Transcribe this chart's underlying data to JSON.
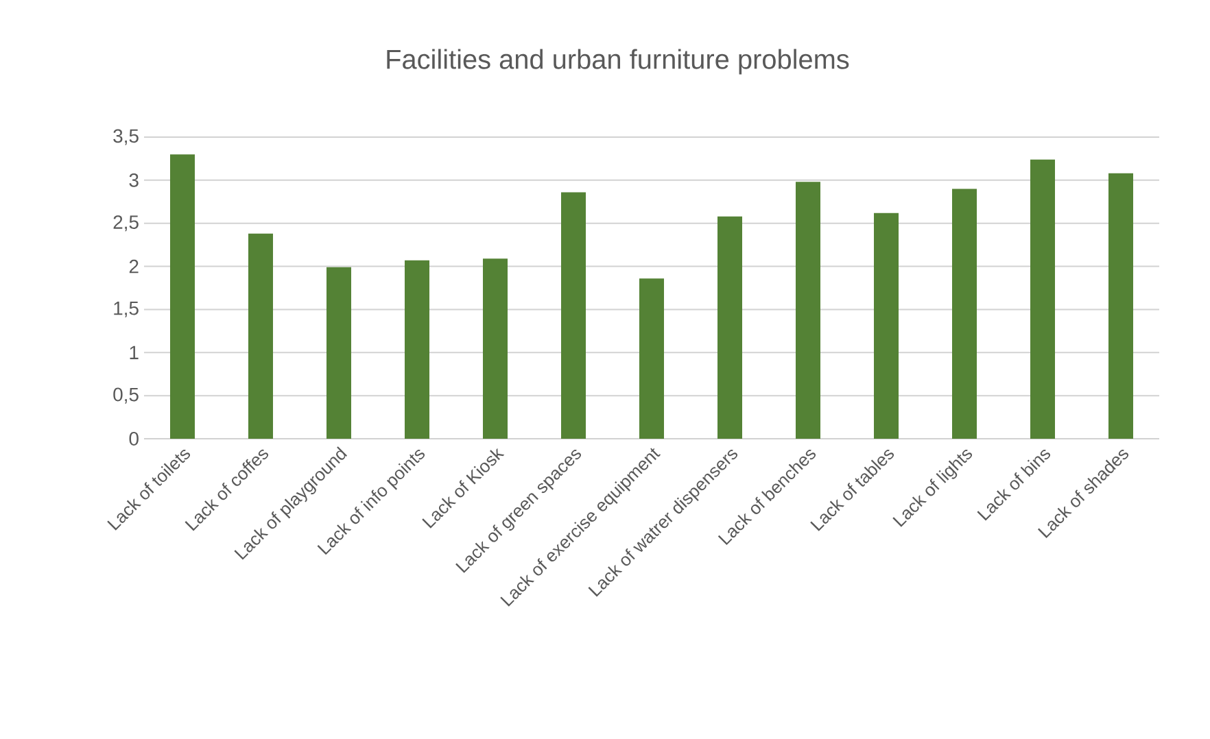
{
  "chart_data": {
    "type": "bar",
    "title": "Facilities and urban furniture problems",
    "categories": [
      "Lack of toilets",
      "Lack of coffes",
      "Lack of playground",
      "Lack of info points",
      "Lack of Kiosk",
      "Lack of green spaces",
      "Lack of exercise equipment",
      "Lack of watrer dispensers",
      "Lack of benches",
      "Lack of tables",
      "Lack of lights",
      "Lack of bins",
      "Lack of shades"
    ],
    "values": [
      3.3,
      2.38,
      1.99,
      2.07,
      2.09,
      2.86,
      1.86,
      2.58,
      2.98,
      2.62,
      2.9,
      3.24,
      3.08
    ],
    "color": "#548235",
    "ylim": [
      0,
      3.5
    ],
    "yticks": [
      0,
      {
        "value": 0.5,
        "label": "0,5"
      },
      1,
      {
        "value": 1.5,
        "label": "1,5"
      },
      2,
      {
        "value": 2.5,
        "label": "2,5"
      },
      3,
      {
        "value": 3.5,
        "label": "3,5"
      }
    ],
    "grid": "y"
  }
}
